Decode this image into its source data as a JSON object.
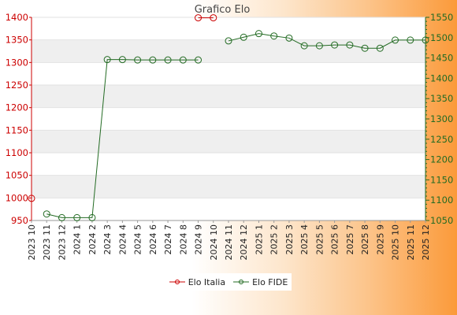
{
  "chart_data": {
    "type": "line",
    "title": "Grafico Elo",
    "categories": [
      "2023 10",
      "2023 11",
      "2023 12",
      "2024 1",
      "2024 2",
      "2024 3",
      "2024 4",
      "2024 5",
      "2024 6",
      "2024 7",
      "2024 8",
      "2024 9",
      "2024 10",
      "2024 11",
      "2024 12",
      "2025 1",
      "2025 2",
      "2025 3",
      "2025 4",
      "2025 5",
      "2025 6",
      "2025 7",
      "2025 8",
      "2025 9",
      "2025 10",
      "2025 11",
      "2025 12"
    ],
    "y_left": {
      "range": [
        950,
        1400
      ],
      "ticks": [
        950,
        1000,
        1050,
        1100,
        1150,
        1200,
        1250,
        1300,
        1350,
        1400
      ],
      "color": "#cc0000"
    },
    "y_right": {
      "range": [
        1050,
        1550
      ],
      "ticks": [
        1050,
        1100,
        1150,
        1200,
        1250,
        1300,
        1350,
        1400,
        1450,
        1500,
        1550
      ],
      "color": "#236b23"
    },
    "series": [
      {
        "name": "Elo Italia",
        "axis": "left",
        "color": "#cc0000",
        "values": [
          999,
          null,
          null,
          null,
          null,
          null,
          null,
          null,
          null,
          null,
          null,
          1399,
          1399,
          null,
          null,
          null,
          null,
          null,
          null,
          null,
          null,
          null,
          null,
          null,
          null,
          null,
          null
        ]
      },
      {
        "name": "Elo FIDE",
        "axis": "right",
        "color": "#236b23",
        "values": [
          null,
          1066,
          1057,
          1057,
          1057,
          1446,
          1446,
          1445,
          1445,
          1445,
          1445,
          1445,
          null,
          1492,
          1501,
          1510,
          1504,
          1499,
          1480,
          1480,
          1482,
          1482,
          1474,
          1474,
          1494,
          1494,
          1494
        ]
      }
    ],
    "grid": true,
    "legend_position": "bottom"
  }
}
